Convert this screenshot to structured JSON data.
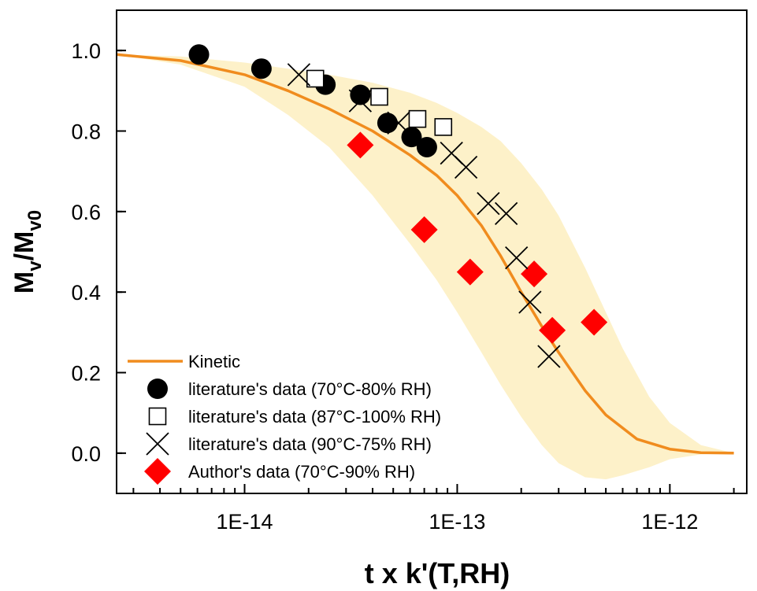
{
  "chart_data": {
    "type": "scatter",
    "x_scale": "log",
    "xlim": [
      2.5e-15,
      2.3e-12
    ],
    "ylim": [
      -0.1,
      1.1
    ],
    "xlabel": "t x k'(T,RH)",
    "ylabel": {
      "main": "M",
      "sub1": "v",
      "slash": "/M",
      "sub2": "v0"
    },
    "x_ticks": [
      {
        "value": 1e-14,
        "label": "1E-14"
      },
      {
        "value": 1e-13,
        "label": "1E-13"
      },
      {
        "value": 1e-12,
        "label": "1E-12"
      }
    ],
    "y_ticks": [
      {
        "value": 0.0,
        "label": "0.0"
      },
      {
        "value": 0.2,
        "label": "0.2"
      },
      {
        "value": 0.4,
        "label": "0.4"
      },
      {
        "value": 0.6,
        "label": "0.6"
      },
      {
        "value": 0.8,
        "label": "0.8"
      },
      {
        "value": 1.0,
        "label": "1.0"
      }
    ],
    "grid": false,
    "legend_position": "bottom-left",
    "colors": {
      "kinetic": "#f08c1e",
      "band": "#fdf1c9",
      "author": "#ff0000",
      "markers": "#000000"
    },
    "kinetic": {
      "name": "Kinetic",
      "x": [
        2.5e-15,
        5e-15,
        1e-14,
        1.6e-14,
        2.5e-14,
        4e-14,
        6e-14,
        8e-14,
        1e-13,
        1.3e-13,
        1.6e-13,
        2e-13,
        2.5e-13,
        3e-13,
        4e-13,
        5e-13,
        7e-13,
        1e-12,
        1.4e-12,
        2e-12
      ],
      "y": [
        0.99,
        0.975,
        0.94,
        0.9,
        0.855,
        0.8,
        0.74,
        0.69,
        0.64,
        0.565,
        0.49,
        0.4,
        0.315,
        0.25,
        0.155,
        0.095,
        0.035,
        0.01,
        0.001,
        0.0
      ]
    },
    "band": {
      "x": [
        2.5e-15,
        5e-15,
        1e-14,
        1.6e-14,
        2.5e-14,
        4e-14,
        6e-14,
        8e-14,
        1e-13,
        1.3e-13,
        1.6e-13,
        2e-13,
        2.5e-13,
        3e-13,
        4e-13,
        5e-13,
        6e-13,
        8e-13,
        1e-12,
        1.4e-12,
        2e-12
      ],
      "upper": [
        0.99,
        0.985,
        0.97,
        0.955,
        0.94,
        0.92,
        0.895,
        0.87,
        0.845,
        0.81,
        0.775,
        0.72,
        0.655,
        0.59,
        0.46,
        0.35,
        0.26,
        0.14,
        0.075,
        0.02,
        0.0
      ],
      "lower": [
        0.99,
        0.965,
        0.91,
        0.84,
        0.76,
        0.64,
        0.52,
        0.43,
        0.35,
        0.25,
        0.17,
        0.09,
        0.02,
        -0.025,
        -0.06,
        -0.065,
        -0.055,
        -0.035,
        -0.015,
        -0.003,
        0.0
      ]
    },
    "series": [
      {
        "name": "literature's data (70°C-80% RH)",
        "marker": "circle",
        "x": [
          6.1e-15,
          1.2e-14,
          2.4e-14,
          3.5e-14,
          4.7e-14,
          6.1e-14,
          7.2e-14
        ],
        "y": [
          0.99,
          0.955,
          0.915,
          0.89,
          0.82,
          0.785,
          0.76
        ]
      },
      {
        "name": "literature's data (87°C-100% RH)",
        "marker": "open-square",
        "x": [
          2.15e-14,
          4.3e-14,
          6.5e-14,
          8.6e-14
        ],
        "y": [
          0.93,
          0.885,
          0.83,
          0.81
        ]
      },
      {
        "name": "literature's data (90°C-75% RH)",
        "marker": "cross",
        "x": [
          1.8e-14,
          3.5e-14,
          5.3e-14,
          9.4e-14,
          1.1e-13,
          1.4e-13,
          1.7e-13,
          1.9e-13,
          2.2e-13,
          2.7e-13
        ],
        "y": [
          0.94,
          0.875,
          0.82,
          0.745,
          0.71,
          0.62,
          0.595,
          0.485,
          0.375,
          0.24
        ]
      },
      {
        "name": "Author's data (70°C-90% RH)",
        "marker": "diamond",
        "x": [
          3.5e-14,
          7e-14,
          1.15e-13,
          2.3e-13,
          2.8e-13,
          4.4e-13
        ],
        "y": [
          0.765,
          0.555,
          0.45,
          0.445,
          0.305,
          0.325
        ]
      }
    ]
  }
}
